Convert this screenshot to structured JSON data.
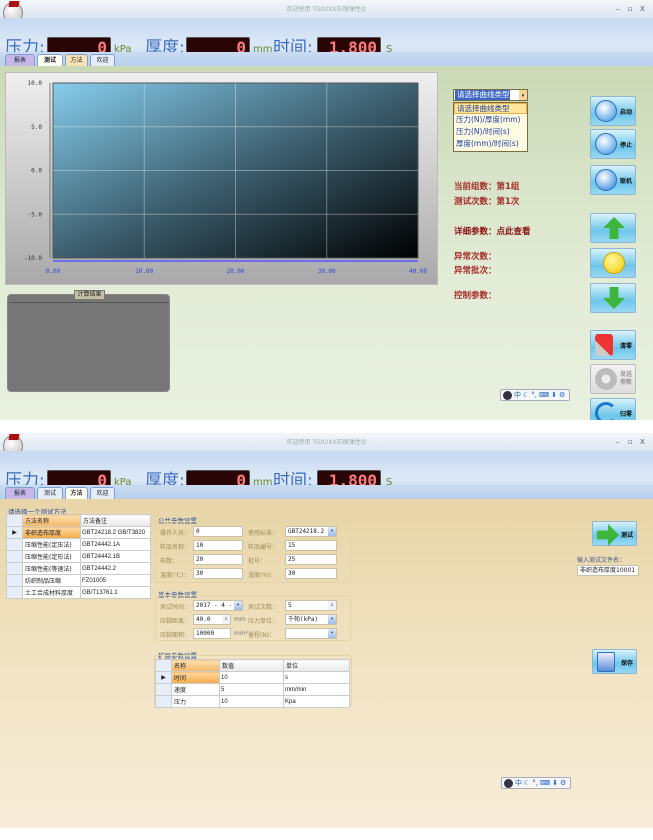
{
  "app": {
    "title": "欢迎使用 TG02XX压缩弹性仪",
    "logo": "MB",
    "win_controls": [
      "–",
      "▫",
      "X"
    ]
  },
  "readouts": {
    "pressure_label": "压力:",
    "pressure_value": "0",
    "pressure_unit": "kPa",
    "thickness_label": "厚度:",
    "thickness_value": "0",
    "thickness_unit": "mm",
    "time_label": "时间:",
    "time_value": "1.800",
    "time_unit": "S"
  },
  "tabs": [
    "报表",
    "测试",
    "方法",
    "欢迎"
  ],
  "test": {
    "curve_select": {
      "value": "请选择曲线类型",
      "options": [
        "请选择曲线类型",
        "压力(N)/厚度(mm)",
        "压力(N)/时间(s)",
        "厚度(mm)/时间(s)"
      ]
    },
    "current_group": "当前组数：第1组",
    "test_count": "测试次数：第1次",
    "detail_params": "详细参数：点此查看",
    "abnormal_count": "异常次数：",
    "abnormal_batch": "异常批次：",
    "control_params": "控制参数：",
    "result_box_title": "计算结果",
    "buttons": [
      {
        "label": "启动",
        "icon": "play-icon"
      },
      {
        "label": "停止",
        "icon": "stop-icon"
      },
      {
        "label": "联机",
        "icon": "globe-icon"
      },
      {
        "label": "",
        "icon": "arrow-up-icon"
      },
      {
        "label": "",
        "icon": "yellow-circle-icon"
      },
      {
        "label": "",
        "icon": "arrow-down-icon"
      },
      {
        "label": "清零",
        "icon": "wrench-icon"
      },
      {
        "label": "发送参数",
        "icon": "gear-icon",
        "disabled": true
      },
      {
        "label": "归零",
        "icon": "reset-icon"
      }
    ]
  },
  "chart_data": {
    "type": "line",
    "x_ticks": [
      "0.00",
      "10.00",
      "20.00",
      "30.00",
      "40.00"
    ],
    "y_ticks": [
      "10.0",
      "5.0",
      "0.0",
      "-5.0",
      "-10.0"
    ],
    "xlim": [
      0,
      40
    ],
    "ylim": [
      -10,
      10
    ],
    "grid": true,
    "series": []
  },
  "ime": {
    "items": [
      "中",
      "☾",
      "°,",
      "⌨",
      "⬇",
      "⚙"
    ]
  },
  "method": {
    "select_label": "请选择一个测试方法",
    "method_table": {
      "headers": [
        "方法名称",
        "方法备注"
      ],
      "rows": [
        [
          "非织造布厚度",
          "GBT24218.2 GB/T3820"
        ],
        [
          "压缩性能(定压法)",
          "GBT24442.1A"
        ],
        [
          "压缩性能(定形法)",
          "GBT24442.1B"
        ],
        [
          "压缩性能(等速法)",
          "GBT24442.2"
        ],
        [
          "纺织制品压缩",
          "FZ01005"
        ],
        [
          "土工合成材料厚度",
          "GB/T13761.1"
        ]
      ],
      "selected": 0
    },
    "common": {
      "title": "公共参数设置",
      "fields": [
        {
          "label": "操作人员：",
          "value": "0"
        },
        {
          "label": "使用标准：",
          "value": "GBT24218.2 GB/",
          "combo": true
        },
        {
          "label": "样品名称：",
          "value": "10"
        },
        {
          "label": "样品编号：",
          "value": "15"
        },
        {
          "label": "样数：",
          "value": "20"
        },
        {
          "label": "批号：",
          "value": "25"
        },
        {
          "label": "温度(℃)：",
          "value": "30"
        },
        {
          "label": "湿度(%)：",
          "value": "30"
        }
      ]
    },
    "basic": {
      "title": "基本参数设置",
      "fields": [
        {
          "label": "测试时间：",
          "value": "2017 - 4 - 1",
          "combo": true
        },
        {
          "label": "测试次数：",
          "value": "5",
          "spin": true
        },
        {
          "label": "压脚距离：",
          "value": "40.0",
          "spin": true,
          "unit": "mm"
        },
        {
          "label": "压力单位：",
          "value": "千帕(kPa)",
          "combo": true
        },
        {
          "label": "压脚面积：",
          "value": "10000",
          "unit": "mm²"
        },
        {
          "label": "量程(N)：",
          "value": "",
          "combo": true
        }
      ]
    },
    "extended": {
      "title": "扩展参数设置",
      "headers": [
        "名称",
        "数值",
        "单位"
      ],
      "rows": [
        [
          "时间",
          "10",
          "s"
        ],
        [
          "速度",
          "5",
          "mm/min"
        ],
        [
          "压力",
          "10",
          "Kpa"
        ]
      ],
      "selected": 0
    },
    "test_button": "测试",
    "file_label": "输入测试文件名：",
    "file_value": "非织造布厚度10001",
    "save_button": "保存"
  }
}
